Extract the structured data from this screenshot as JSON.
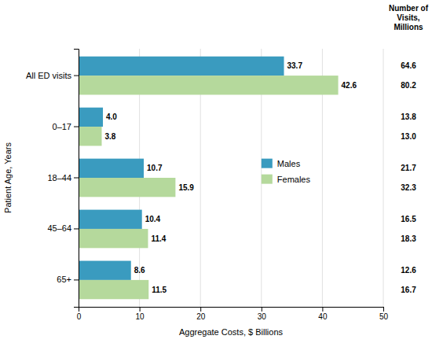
{
  "chart_data": {
    "type": "bar",
    "orientation": "horizontal",
    "categories": [
      "All ED visits",
      "0–17",
      "18–44",
      "45–64",
      "65+"
    ],
    "series": [
      {
        "name": "Males",
        "color": "#3a9bbf",
        "values": [
          33.7,
          4.0,
          10.7,
          10.4,
          8.6
        ],
        "value_labels": [
          "33.7",
          "4.0",
          "10.7",
          "10.4",
          "8.6"
        ],
        "visits": [
          64.6,
          13.8,
          21.7,
          16.5,
          12.6
        ],
        "visits_labels": [
          "64.6",
          "13.8",
          "21.7",
          "16.5",
          "12.6"
        ]
      },
      {
        "name": "Females",
        "color": "#b5d99c",
        "values": [
          42.6,
          3.8,
          15.9,
          11.4,
          11.5
        ],
        "value_labels": [
          "42.6",
          "3.8",
          "15.9",
          "11.4",
          "11.5"
        ],
        "visits": [
          80.2,
          13.0,
          32.3,
          18.3,
          16.7
        ],
        "visits_labels": [
          "80.2",
          "13.0",
          "32.3",
          "18.3",
          "16.7"
        ]
      }
    ],
    "annotations": [
      "Number of\nVisits,\nMillions"
    ],
    "xlabel": "Aggregate Costs,  $ Billions",
    "ylabel": "Patient Age, Years",
    "xlim": [
      0,
      50
    ],
    "xticks": [
      0,
      10,
      20,
      30,
      40,
      50
    ],
    "grid": true,
    "legend": "right",
    "data_labels": true
  }
}
